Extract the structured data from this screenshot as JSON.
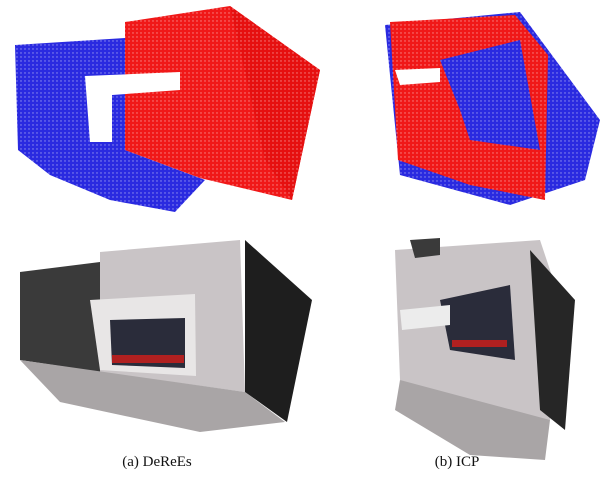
{
  "captions": [
    "(a) DeReEs",
    "(b) ICP"
  ]
}
